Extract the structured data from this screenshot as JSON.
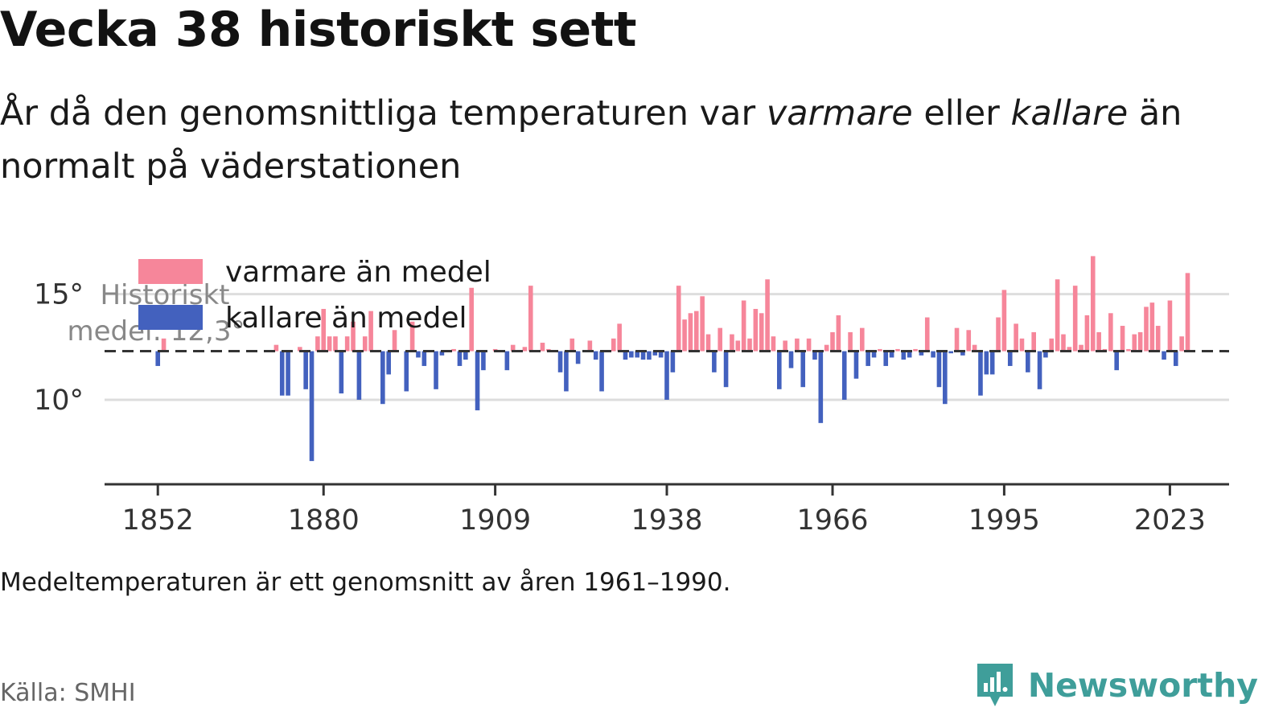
{
  "header": {
    "title": "Vecka 38 historiskt sett",
    "subtitle_part1": "År då den genomsnittliga temperaturen var ",
    "subtitle_warm": "varmare",
    "subtitle_part2": " eller ",
    "subtitle_cold": "kallare",
    "subtitle_part3": " än normalt på väderstationen"
  },
  "footer": {
    "note": "Medeltemperaturen är ett genomsnitt av åren 1961–1990.",
    "source": "Källa: SMHI",
    "brand": "Newsworthy"
  },
  "colors": {
    "warm": "#f6869a",
    "cold": "#4361be",
    "brand": "#3f9e9a",
    "grid": "#dddddd",
    "axis": "#333333"
  },
  "chart_data": {
    "type": "bar",
    "baseline": 12.3,
    "baseline_label_line1": "Historiskt",
    "baseline_label_line2": "medel: 12,3°",
    "legend": [
      {
        "name": "varmare än medel",
        "color": "#f6869a"
      },
      {
        "name": "kallare än medel",
        "color": "#4361be"
      }
    ],
    "y_ticks": [
      {
        "value": 10,
        "label": "10°"
      },
      {
        "value": 15,
        "label": "15°"
      }
    ],
    "x_ticks": [
      1852,
      1880,
      1909,
      1938,
      1966,
      1995,
      2023
    ],
    "xlim": [
      1843,
      2033
    ],
    "ylim": [
      6.0,
      17.5
    ],
    "grid": true,
    "values": [
      [
        1852,
        11.6
      ],
      [
        1853,
        12.9
      ],
      [
        1872,
        12.6
      ],
      [
        1873,
        10.2
      ],
      [
        1874,
        10.2
      ],
      [
        1876,
        12.5
      ],
      [
        1877,
        10.5
      ],
      [
        1878,
        7.1
      ],
      [
        1879,
        13.0
      ],
      [
        1880,
        14.3
      ],
      [
        1881,
        13.0
      ],
      [
        1882,
        13.0
      ],
      [
        1883,
        10.3
      ],
      [
        1884,
        13.0
      ],
      [
        1885,
        13.7
      ],
      [
        1886,
        10.0
      ],
      [
        1887,
        13.0
      ],
      [
        1888,
        14.2
      ],
      [
        1890,
        9.8
      ],
      [
        1891,
        11.2
      ],
      [
        1892,
        13.3
      ],
      [
        1894,
        10.4
      ],
      [
        1895,
        13.7
      ],
      [
        1896,
        12.0
      ],
      [
        1897,
        11.6
      ],
      [
        1899,
        10.5
      ],
      [
        1900,
        12.1
      ],
      [
        1902,
        12.4
      ],
      [
        1903,
        11.6
      ],
      [
        1904,
        11.9
      ],
      [
        1905,
        15.3
      ],
      [
        1906,
        9.5
      ],
      [
        1907,
        11.4
      ],
      [
        1909,
        12.4
      ],
      [
        1911,
        11.4
      ],
      [
        1912,
        12.6
      ],
      [
        1914,
        12.5
      ],
      [
        1915,
        15.4
      ],
      [
        1917,
        12.7
      ],
      [
        1918,
        12.4
      ],
      [
        1920,
        11.3
      ],
      [
        1921,
        10.4
      ],
      [
        1922,
        12.9
      ],
      [
        1923,
        11.7
      ],
      [
        1925,
        12.8
      ],
      [
        1926,
        11.9
      ],
      [
        1927,
        10.4
      ],
      [
        1929,
        12.9
      ],
      [
        1930,
        13.6
      ],
      [
        1931,
        11.9
      ],
      [
        1932,
        12.0
      ],
      [
        1933,
        12.0
      ],
      [
        1934,
        11.9
      ],
      [
        1935,
        11.9
      ],
      [
        1936,
        12.1
      ],
      [
        1937,
        12.0
      ],
      [
        1938,
        10.0
      ],
      [
        1939,
        11.3
      ],
      [
        1940,
        15.4
      ],
      [
        1941,
        13.8
      ],
      [
        1942,
        14.1
      ],
      [
        1943,
        14.2
      ],
      [
        1944,
        14.9
      ],
      [
        1945,
        13.1
      ],
      [
        1946,
        11.3
      ],
      [
        1947,
        13.4
      ],
      [
        1948,
        10.6
      ],
      [
        1949,
        13.1
      ],
      [
        1950,
        12.8
      ],
      [
        1951,
        14.7
      ],
      [
        1952,
        12.9
      ],
      [
        1953,
        14.3
      ],
      [
        1954,
        14.1
      ],
      [
        1955,
        15.7
      ],
      [
        1956,
        13.0
      ],
      [
        1957,
        10.5
      ],
      [
        1958,
        12.8
      ],
      [
        1959,
        11.5
      ],
      [
        1960,
        12.9
      ],
      [
        1961,
        10.6
      ],
      [
        1962,
        12.9
      ],
      [
        1963,
        11.9
      ],
      [
        1964,
        8.9
      ],
      [
        1965,
        12.6
      ],
      [
        1966,
        13.2
      ],
      [
        1967,
        14.0
      ],
      [
        1968,
        10.0
      ],
      [
        1969,
        13.2
      ],
      [
        1970,
        11.0
      ],
      [
        1971,
        13.4
      ],
      [
        1972,
        11.6
      ],
      [
        1973,
        12.0
      ],
      [
        1974,
        12.4
      ],
      [
        1975,
        11.6
      ],
      [
        1976,
        12.0
      ],
      [
        1977,
        12.4
      ],
      [
        1978,
        11.9
      ],
      [
        1979,
        12.0
      ],
      [
        1980,
        12.4
      ],
      [
        1981,
        12.1
      ],
      [
        1982,
        13.9
      ],
      [
        1983,
        12.0
      ],
      [
        1984,
        10.6
      ],
      [
        1985,
        9.8
      ],
      [
        1986,
        12.2
      ],
      [
        1987,
        13.4
      ],
      [
        1988,
        12.1
      ],
      [
        1989,
        13.3
      ],
      [
        1990,
        12.6
      ],
      [
        1991,
        10.2
      ],
      [
        1992,
        11.2
      ],
      [
        1993,
        11.2
      ],
      [
        1994,
        13.9
      ],
      [
        1995,
        15.2
      ],
      [
        1996,
        11.6
      ],
      [
        1997,
        13.6
      ],
      [
        1998,
        12.9
      ],
      [
        1999,
        11.3
      ],
      [
        2000,
        13.2
      ],
      [
        2001,
        10.5
      ],
      [
        2002,
        12.0
      ],
      [
        2003,
        12.9
      ],
      [
        2004,
        15.7
      ],
      [
        2005,
        13.1
      ],
      [
        2006,
        12.5
      ],
      [
        2007,
        15.4
      ],
      [
        2008,
        12.6
      ],
      [
        2009,
        14.0
      ],
      [
        2010,
        16.8
      ],
      [
        2011,
        13.2
      ],
      [
        2012,
        12.4
      ],
      [
        2013,
        14.1
      ],
      [
        2014,
        11.4
      ],
      [
        2015,
        13.5
      ],
      [
        2016,
        12.4
      ],
      [
        2017,
        13.1
      ],
      [
        2018,
        13.2
      ],
      [
        2019,
        14.4
      ],
      [
        2020,
        14.6
      ],
      [
        2021,
        13.5
      ],
      [
        2022,
        11.9
      ],
      [
        2023,
        14.7
      ],
      [
        2024,
        11.6
      ],
      [
        2025,
        13.0
      ],
      [
        2026,
        16.0
      ]
    ]
  }
}
